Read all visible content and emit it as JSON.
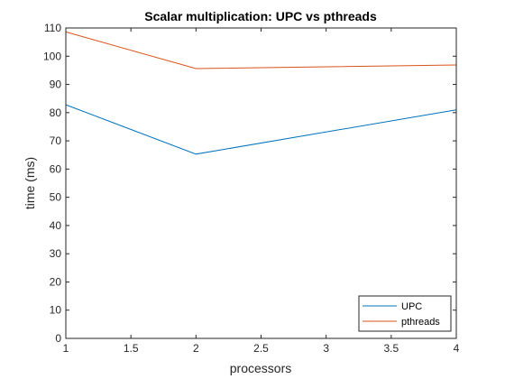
{
  "chart_data": {
    "type": "line",
    "title": "Scalar multiplication: UPC vs pthreads",
    "xlabel": "processors",
    "ylabel": "time (ms)",
    "xlim": [
      1,
      4
    ],
    "ylim": [
      0,
      110
    ],
    "xticks": [
      "1",
      "1.5",
      "2",
      "2.5",
      "3",
      "3.5",
      "4"
    ],
    "yticks": [
      "0",
      "10",
      "20",
      "30",
      "40",
      "50",
      "60",
      "70",
      "80",
      "90",
      "100",
      "110"
    ],
    "x": [
      1,
      2,
      4
    ],
    "series": [
      {
        "name": "UPC",
        "color": "#0072BD",
        "values": [
          82.8,
          65.3,
          81.0
        ]
      },
      {
        "name": "pthreads",
        "color": "#D95319",
        "values": [
          108.6,
          95.6,
          96.9
        ]
      }
    ],
    "grid": false,
    "legend_position": "bottom-right"
  }
}
